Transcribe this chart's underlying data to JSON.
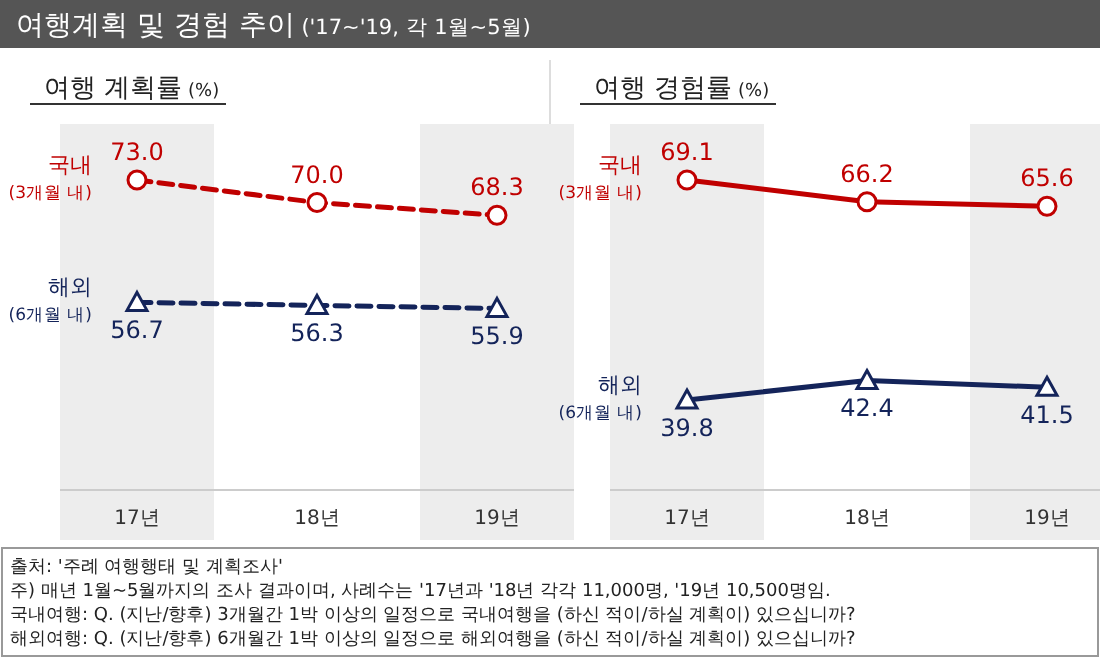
{
  "chart_data": [
    {
      "type": "other",
      "title": "여행계획 및 경험 추이 ('17~'19, 각 1월~5월)",
      "annotations": [
        "출처: '주례 여행행태 및 계획조사'",
        "주) 매년 1월~5월까지의 조사 결과이며, 사례수는 '17년과 '18년 각각 11,000명, '19년 10,500명임.",
        "국내여행: Q. (지난/향후) 3개월간 1박 이상의 일정으로 국내여행을 (하신 적이/하실 계획이) 있으십니까?",
        "해외여행: Q. (지난/향후) 6개월간 1박 이상의 일정으로 해외여행을 (하신 적이/하실 계획이) 있으십니까?"
      ]
    },
    {
      "type": "line",
      "title": "여행 계획률 (%)",
      "categories": [
        "17년",
        "18년",
        "19년"
      ],
      "line_style": "dashed",
      "bands": [
        {
          "axis": "x",
          "from": "17년",
          "to": "17년",
          "color": "#ededed"
        },
        {
          "axis": "x",
          "from": "19년",
          "to": "19년",
          "color": "#ededed"
        }
      ],
      "series": [
        {
          "name": "국내$_{(3개월 내)}$",
          "color": "#c00000",
          "marker": "circle",
          "values": [
            73.0,
            70.0,
            68.3
          ],
          "value_labels": [
            "73.0",
            "70.0",
            "68.3"
          ]
        },
        {
          "name": "해외$_{(6개월 내)}$",
          "color": "#14245a",
          "marker": "triangle",
          "values": [
            56.7,
            56.3,
            55.9
          ],
          "value_labels": [
            "56.7",
            "56.3",
            "55.9"
          ]
        }
      ]
    },
    {
      "type": "line",
      "title": "여행 경험률 (%)",
      "categories": [
        "17년",
        "18년",
        "19년"
      ],
      "line_style": "solid",
      "bands": [
        {
          "axis": "x",
          "from": "17년",
          "to": "17년",
          "color": "#ededed"
        },
        {
          "axis": "x",
          "from": "19년",
          "to": "19년",
          "color": "#ededed"
        }
      ],
      "series": [
        {
          "name": "국내$_{(3개월 내)}$",
          "color": "#c00000",
          "marker": "circle",
          "values": [
            69.1,
            66.2,
            65.6
          ],
          "value_labels": [
            "69.1",
            "66.2",
            "65.6"
          ]
        },
        {
          "name": "해외$_{(6개월 내)}$",
          "color": "#14245a",
          "marker": "triangle",
          "values": [
            39.8,
            42.4,
            41.5
          ],
          "value_labels": [
            "39.8",
            "42.4",
            "41.5"
          ]
        }
      ]
    }
  ]
}
